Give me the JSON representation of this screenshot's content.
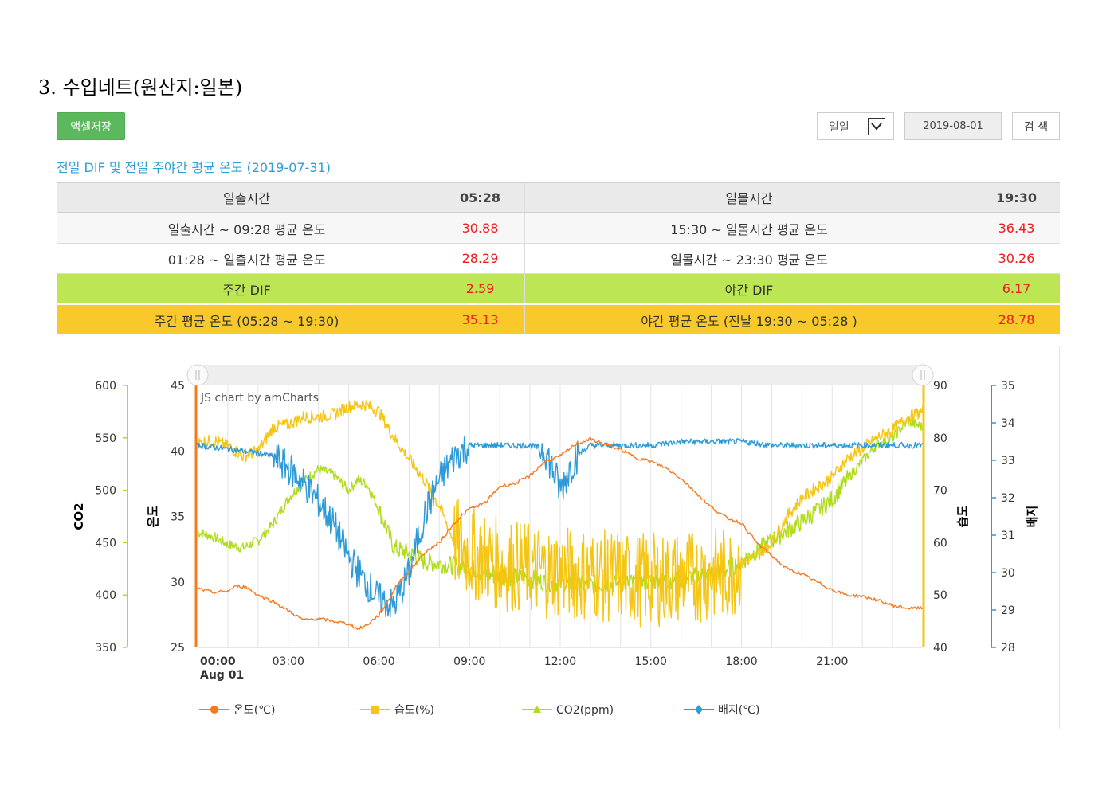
{
  "section_title": "3. 수입네트(원산지:일본)",
  "toolbar": {
    "excel_label": "액셀저장",
    "period_value": "일일",
    "date_value": "2019-08-01",
    "search_label": "검 색"
  },
  "subtitle": "전일 DIF 및 전일 주야간 평균 온도 (2019-07-31)",
  "dif_table": {
    "sunrise_label": "일출시간",
    "sunrise_value": "05:28",
    "sunset_label": "일몰시간",
    "sunset_value": "19:30",
    "row1_left_label": "일출시간 ~ 09:28 평균 온도",
    "row1_left_value": "30.88",
    "row1_right_label": "15:30 ~ 일몰시간 평균 온도",
    "row1_right_value": "36.43",
    "row2_left_label": "01:28 ~ 일출시간 평균 온도",
    "row2_left_value": "28.29",
    "row2_right_label": "일몰시간 ~ 23:30 평균 온도",
    "row2_right_value": "30.26",
    "day_dif_label": "주간 DIF",
    "day_dif_value": "2.59",
    "night_dif_label": "야간 DIF",
    "night_dif_value": "6.17",
    "day_avg_label": "주간 평균 온도 (05:28 ~ 19:30)",
    "day_avg_value": "35.13",
    "night_avg_label": "야간 평균 온도 (전날 19:30 ~ 05:28 )",
    "night_avg_value": "28.78"
  },
  "chart_data": {
    "type": "line",
    "credit": "JS chart by amCharts",
    "x_ticks": [
      "00:00",
      "03:00",
      "06:00",
      "09:00",
      "12:00",
      "15:00",
      "18:00",
      "21:00"
    ],
    "x_first_sublabel": "Aug 01",
    "x_range_hours": [
      0,
      24
    ],
    "grid": true,
    "legend_position": "bottom",
    "axes": {
      "co2": {
        "label": "CO2",
        "range": [
          350,
          600
        ],
        "ticks": [
          350,
          400,
          450,
          500,
          550,
          600
        ],
        "position": "left-outer",
        "color": "#b1dc1e"
      },
      "temp": {
        "label": "온도",
        "range": [
          25,
          45
        ],
        "ticks": [
          25,
          30,
          35,
          40,
          45
        ],
        "position": "left-inner",
        "color": "#f7781e"
      },
      "humidity": {
        "label": "습도",
        "range": [
          40,
          90
        ],
        "ticks": [
          40,
          50,
          60,
          70,
          80,
          90
        ],
        "position": "right-inner",
        "color": "#f5c513"
      },
      "medium": {
        "label": "배지",
        "range": [
          28,
          35
        ],
        "ticks": [
          28,
          29,
          30,
          31,
          32,
          33,
          34,
          35
        ],
        "position": "right-outer",
        "color": "#2e9bd8"
      }
    },
    "series": [
      {
        "name": "온도(℃)",
        "axis": "temp",
        "color": "#f7781e",
        "marker": "circle",
        "x": [
          0,
          0.5,
          1,
          1.3,
          1.6,
          2,
          2.5,
          3,
          3.5,
          4,
          4.5,
          5,
          5.3,
          5.6,
          6,
          6.3,
          6.6,
          7,
          7.5,
          8,
          8.5,
          9,
          9.5,
          10,
          10.5,
          11,
          11.5,
          12,
          12.5,
          13,
          13.5,
          14,
          14.5,
          15,
          15.5,
          16,
          16.5,
          17,
          17.5,
          18,
          18.5,
          19,
          19.5,
          20,
          20.5,
          21,
          21.5,
          22,
          22.5,
          23,
          23.5,
          24
        ],
        "values": [
          29.5,
          29.2,
          29.3,
          29.7,
          29.6,
          29.0,
          28.5,
          27.8,
          27.1,
          27.2,
          27.0,
          26.8,
          26.4,
          26.7,
          27.5,
          28.5,
          29.8,
          30.8,
          32.2,
          33.0,
          34.5,
          35.6,
          36.0,
          37.3,
          37.5,
          38.1,
          39.2,
          39.6,
          40.5,
          40.9,
          40.5,
          40.1,
          39.5,
          39.2,
          38.7,
          37.9,
          36.8,
          35.7,
          34.9,
          34.5,
          33.0,
          32.0,
          31.0,
          30.6,
          30.0,
          29.4,
          29.0,
          28.9,
          28.6,
          28.2,
          28.0,
          28.0
        ]
      },
      {
        "name": "습도(%)",
        "axis": "humidity",
        "color": "#f5c513",
        "marker": "square",
        "x": [
          0,
          0.5,
          1,
          1.5,
          2,
          2.5,
          3,
          3.5,
          4,
          4.5,
          5,
          5.5,
          6,
          6.5,
          7,
          7.5,
          8,
          8.5,
          9,
          9.5,
          10,
          10.5,
          11,
          11.5,
          12,
          12.5,
          13,
          13.5,
          14,
          14.5,
          15,
          15.5,
          16,
          16.5,
          17,
          17.5,
          18,
          18.5,
          19,
          19.5,
          20,
          20.5,
          21,
          21.5,
          22,
          22.5,
          23,
          23.5,
          24
        ],
        "values": [
          79,
          79.5,
          78.5,
          76.5,
          77.5,
          82,
          82.5,
          84,
          84,
          84.5,
          86,
          86.5,
          85,
          80,
          76,
          72,
          67,
          60,
          58,
          57,
          56,
          55.5,
          55,
          54.5,
          54.5,
          54,
          54,
          53.5,
          53.5,
          53,
          53,
          53,
          53.5,
          53.5,
          54,
          54,
          56,
          57.5,
          60,
          65,
          68.5,
          70.5,
          72.5,
          76,
          78,
          80,
          81.5,
          84,
          85
        ]
      },
      {
        "name": "CO2(ppm)",
        "axis": "co2",
        "color": "#b1dc1e",
        "marker": "triangle",
        "x": [
          0,
          0.5,
          1,
          1.5,
          2,
          2.5,
          3,
          3.5,
          4,
          4.5,
          5,
          5.3,
          5.6,
          6,
          6.5,
          7,
          7.5,
          8,
          8.5,
          9,
          9.5,
          10,
          10.5,
          11,
          11.5,
          12,
          12.5,
          13,
          13.5,
          14,
          14.5,
          15,
          15.5,
          16,
          16.5,
          17,
          17.5,
          18,
          18.5,
          19,
          19.5,
          20,
          20.5,
          21,
          21.5,
          22,
          22.5,
          23,
          23.5,
          24
        ],
        "values": [
          460,
          456,
          448,
          445,
          452,
          468,
          492,
          508,
          520,
          515,
          500,
          510,
          506,
          482,
          445,
          440,
          432,
          430,
          428,
          427,
          420,
          418,
          417,
          416,
          412,
          411,
          410,
          410,
          410,
          411,
          412,
          413,
          414,
          416,
          418,
          420,
          424,
          432,
          442,
          452,
          462,
          470,
          480,
          492,
          510,
          528,
          544,
          550,
          566,
          560
        ]
      },
      {
        "name": "배지(℃)",
        "axis": "medium",
        "color": "#2e9bd8",
        "marker": "diamond",
        "x": [
          0,
          1,
          2,
          2.5,
          3,
          3.5,
          4,
          4.5,
          5,
          5.5,
          6,
          6.5,
          7,
          7.5,
          8,
          8.5,
          9,
          9.5,
          10,
          10.5,
          11,
          11.5,
          12,
          12.5,
          13,
          14,
          15,
          16,
          17,
          18,
          19,
          20,
          21,
          22,
          23,
          24
        ],
        "values": [
          33.4,
          33.3,
          33.2,
          33.1,
          32.8,
          32.4,
          31.9,
          31.3,
          30.4,
          29.8,
          29.3,
          29.1,
          30.0,
          31.5,
          32.5,
          33.1,
          33.4,
          33.4,
          33.4,
          33.4,
          33.4,
          33.3,
          32.2,
          33.1,
          33.4,
          33.4,
          33.4,
          33.5,
          33.5,
          33.5,
          33.4,
          33.4,
          33.4,
          33.4,
          33.4,
          33.4
        ]
      }
    ]
  }
}
